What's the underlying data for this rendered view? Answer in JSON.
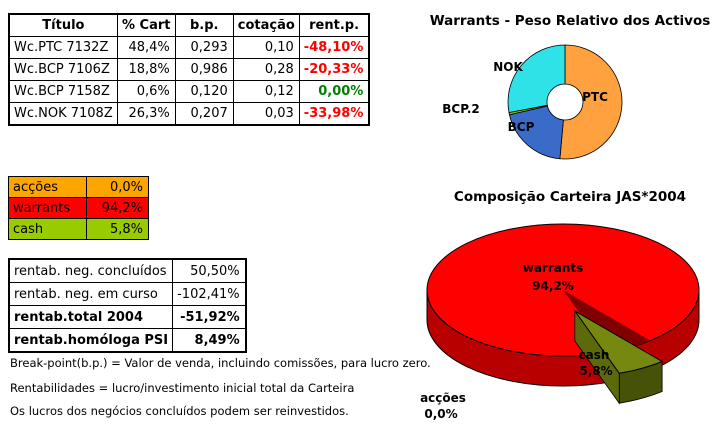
{
  "portfolio_table": {
    "headers": [
      "Título",
      "% Cart",
      "b.p.",
      "cotação",
      "rent.p."
    ],
    "rows": [
      {
        "titulo": "Wc.PTC 7132Z",
        "cart": "48,4%",
        "bp": "0,293",
        "cotacao": "0,10",
        "rent": "-48,10%",
        "rent_color": "#FF0000"
      },
      {
        "titulo": "Wc.BCP 7106Z",
        "cart": "18,8%",
        "bp": "0,986",
        "cotacao": "0,28",
        "rent": "-20,33%",
        "rent_color": "#FF0000"
      },
      {
        "titulo": "Wc.BCP 7158Z",
        "cart": "0,6%",
        "bp": "0,120",
        "cotacao": "0,12",
        "rent": "0,00%",
        "rent_color": "#008000"
      },
      {
        "titulo": "Wc.NOK 7108Z",
        "cart": "26,3%",
        "bp": "0,207",
        "cotacao": "0,03",
        "rent": "-33,98%",
        "rent_color": "#FF0000"
      }
    ]
  },
  "allocation_table": {
    "rows": [
      {
        "label": "acções",
        "value": "0,0%",
        "color": "#FFA500"
      },
      {
        "label": "warrants",
        "value": "94,2%",
        "color": "#FF0000"
      },
      {
        "label": "cash",
        "value": "5,8%",
        "color": "#99CC00"
      }
    ]
  },
  "performance_table": {
    "rows": [
      {
        "label": "rentab. neg. concluídos",
        "value": "50,50%",
        "bold": false
      },
      {
        "label": "rentab. neg. em curso",
        "value": "-102,41%",
        "bold": false
      },
      {
        "label": "rentab.total 2004",
        "value": "-51,92%",
        "bold": true
      },
      {
        "label": "rentab.homóloga PSI",
        "value": "8,49%",
        "bold": true
      }
    ]
  },
  "notes": [
    "Break-point(b.p.) = Valor de venda, incluindo comissões, para lucro zero.",
    "Rentabilidades = lucro/investimento inicial total da Carteira",
    "Os lucros dos negócios concluídos podem ser reinvestidos."
  ],
  "chart_data": [
    {
      "type": "pie",
      "variant": "donut",
      "title": "Warrants - Peso Relativo dos Activos",
      "labels": [
        "PTC",
        "BCP",
        "BCP.2",
        "NOK"
      ],
      "values": [
        48.4,
        18.8,
        0.6,
        26.3
      ],
      "colors": [
        "#FFA13E",
        "#3A6BC9",
        "#86C800",
        "#2FE2E8"
      ],
      "start_angle": 0,
      "legend": "none"
    },
    {
      "type": "pie",
      "variant": "3d-exploded",
      "title": "Composição Carteira JAS*2004",
      "labels": [
        "warrants",
        "cash",
        "acções"
      ],
      "values": [
        94.2,
        5.8,
        0.0
      ],
      "display_values": [
        "94,2%",
        "5,8%",
        "0,0%"
      ],
      "colors": [
        "#FF0000",
        "#76880F",
        "#FF9900"
      ],
      "legend": "none"
    }
  ]
}
